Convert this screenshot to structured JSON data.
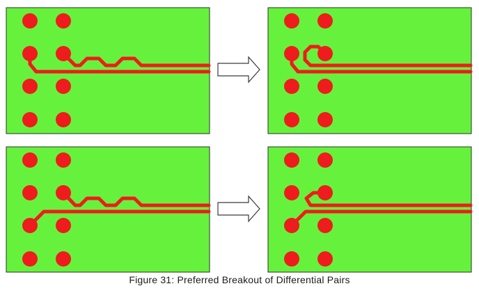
{
  "figure": {
    "caption": "Figure 31: Preferred Breakout of Differential Pairs"
  },
  "colors": {
    "board": "#66f23c",
    "board_border": "#2c2c2c",
    "copper": "#ee1c1c",
    "arrow_fill": "#ffffff",
    "arrow_stroke": "#3a3a3a"
  },
  "panels": [
    {
      "id": "panel-top-left",
      "routing": "meander-before"
    },
    {
      "id": "panel-top-right",
      "routing": "compact-after"
    },
    {
      "id": "panel-bottom-left",
      "routing": "meander-before"
    },
    {
      "id": "panel-bottom-right",
      "routing": "compact-after"
    }
  ],
  "arrows": [
    {
      "id": "arrow-top",
      "direction": "right"
    },
    {
      "id": "arrow-bottom",
      "direction": "right"
    }
  ]
}
